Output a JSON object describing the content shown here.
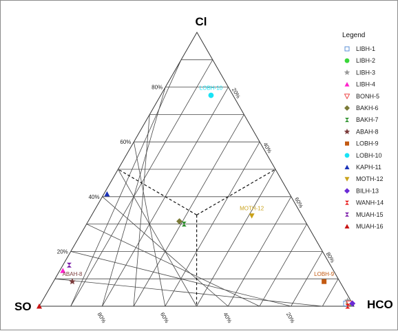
{
  "chart_data": {
    "type": "scatter",
    "subtype": "ternary",
    "vertices": {
      "top": "Cl",
      "left": "SO",
      "right": "HCO"
    },
    "legend": {
      "title": "Legend",
      "placement": "right"
    },
    "grid": true,
    "grid_step": 0.1,
    "left_ticks": [
      "20%",
      "40%",
      "60%",
      "80%"
    ],
    "right_ticks": [
      "20%",
      "40%",
      "60%",
      "80%"
    ],
    "bottom_ticks": [
      "80%",
      "60%",
      "40%",
      "20%"
    ],
    "series": [
      {
        "name": "LIBH-1",
        "marker": "square-open",
        "color": "#5b8fd6",
        "cl": 0.01,
        "hco3": 0.97,
        "show_label": false
      },
      {
        "name": "LIBH-2",
        "marker": "circle",
        "color": "#39d639",
        "cl": 0.01,
        "hco3": 0.98,
        "show_label": false
      },
      {
        "name": "LIBH-3",
        "marker": "star",
        "color": "#9a9a9a",
        "cl": 0.02,
        "hco3": 0.97,
        "show_label": false
      },
      {
        "name": "LIBH-4",
        "marker": "triangle",
        "color": "#ff22cc",
        "cl": 0.13,
        "hco3": 0.01,
        "show_label": false
      },
      {
        "name": "BONH-5",
        "marker": "triangle-down-open",
        "color": "#ee4444",
        "cl": 0.01,
        "hco3": 0.98,
        "show_label": false
      },
      {
        "name": "BAKH-6",
        "marker": "diamond",
        "color": "#7a7a36",
        "cl": 0.31,
        "hco3": 0.29,
        "show_label": false
      },
      {
        "name": "BAKH-7",
        "marker": "hourglass",
        "color": "#1f8a1f",
        "cl": 0.3,
        "hco3": 0.31,
        "show_label": false
      },
      {
        "name": "ABAH-8",
        "marker": "star",
        "color": "#7b3b3b",
        "cl": 0.09,
        "hco3": 0.06,
        "show_label": true
      },
      {
        "name": "LOBH-9",
        "marker": "square",
        "color": "#c35a12",
        "cl": 0.09,
        "hco3": 0.86,
        "show_label": true
      },
      {
        "name": "LOBH-10",
        "marker": "circle",
        "color": "#19e3f5",
        "cl": 0.77,
        "hco3": 0.16,
        "show_label": true
      },
      {
        "name": "KAPH-11",
        "marker": "triangle",
        "color": "#1a32b8",
        "cl": 0.41,
        "hco3": 0.01,
        "show_label": false
      },
      {
        "name": "MOTH-12",
        "marker": "triangle-down",
        "color": "#c9a21a",
        "cl": 0.33,
        "hco3": 0.51,
        "show_label": true
      },
      {
        "name": "BILH-13",
        "marker": "diamond",
        "color": "#6a2ad6",
        "cl": 0.01,
        "hco3": 0.99,
        "show_label": false
      },
      {
        "name": "WANH-14",
        "marker": "hourglass",
        "color": "#e81a1a",
        "cl": 0.0,
        "hco3": 0.98,
        "show_label": false
      },
      {
        "name": "MUAH-15",
        "marker": "hourglass",
        "color": "#7a1aa8",
        "cl": 0.15,
        "hco3": 0.02,
        "show_label": false
      },
      {
        "name": "MUAH-16",
        "marker": "triangle",
        "color": "#c81414",
        "cl": 0.0,
        "hco3": 0.0,
        "show_label": false
      }
    ]
  }
}
